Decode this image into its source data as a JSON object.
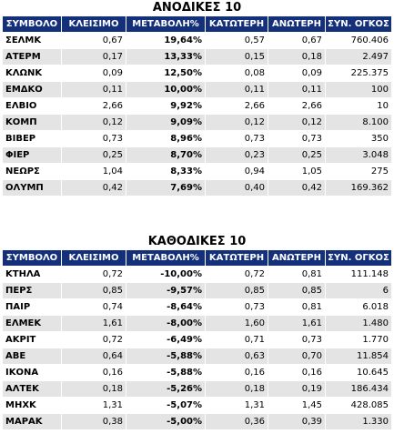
{
  "gainers": {
    "title": "ΑΝΟΔΙΚΕΣ 10",
    "headers": [
      "ΣΥΜΒΟΛΟ",
      "ΚΛΕΙΣΙΜΟ",
      "ΜΕΤΑΒΟΛΗ%",
      "ΚΑΤΩΤΕΡΗ",
      "ΑΝΩΤΕΡΗ",
      "ΣΥΝ. ΟΓΚΟΣ"
    ],
    "rows": [
      {
        "symbol": "ΣΕΛΜΚ",
        "close": "0,67",
        "change": "19,64%",
        "low": "0,57",
        "high": "0,67",
        "volume": "760.406"
      },
      {
        "symbol": "ΑΤΕΡΜ",
        "close": "0,17",
        "change": "13,33%",
        "low": "0,15",
        "high": "0,18",
        "volume": "2.497"
      },
      {
        "symbol": "ΚΛΩΝΚ",
        "close": "0,09",
        "change": "12,50%",
        "low": "0,08",
        "high": "0,09",
        "volume": "225.375"
      },
      {
        "symbol": "ΕΜΔΚΟ",
        "close": "0,11",
        "change": "10,00%",
        "low": "0,11",
        "high": "0,11",
        "volume": "100"
      },
      {
        "symbol": "ΕΛΒΙΟ",
        "close": "2,66",
        "change": "9,92%",
        "low": "2,66",
        "high": "2,66",
        "volume": "10"
      },
      {
        "symbol": "ΚΟΜΠ",
        "close": "0,12",
        "change": "9,09%",
        "low": "0,12",
        "high": "0,12",
        "volume": "8.100"
      },
      {
        "symbol": "ΒΙΒΕΡ",
        "close": "0,73",
        "change": "8,96%",
        "low": "0,73",
        "high": "0,73",
        "volume": "350"
      },
      {
        "symbol": "ΦΙΕΡ",
        "close": "0,25",
        "change": "8,70%",
        "low": "0,23",
        "high": "0,25",
        "volume": "3.048"
      },
      {
        "symbol": "ΝΕΩΡΣ",
        "close": "1,04",
        "change": "8,33%",
        "low": "0,94",
        "high": "1,05",
        "volume": "275"
      },
      {
        "symbol": "ΟΛΥΜΠ",
        "close": "0,42",
        "change": "7,69%",
        "low": "0,40",
        "high": "0,42",
        "volume": "169.362"
      }
    ]
  },
  "losers": {
    "title": "ΚΑΘΟΔΙΚΕΣ 10",
    "headers": [
      "ΣΥΜΒΟΛΟ",
      "ΚΛΕΙΣΙΜΟ",
      "ΜΕΤΑΒΟΛΗ%",
      "ΚΑΤΩΤΕΡΗ",
      "ΑΝΩΤΕΡΗ",
      "ΣΥΝ. ΟΓΚΟΣ"
    ],
    "rows": [
      {
        "symbol": "ΚΤΗΛΑ",
        "close": "0,72",
        "change": "-10,00%",
        "low": "0,72",
        "high": "0,81",
        "volume": "111.148"
      },
      {
        "symbol": "ΠΕΡΣ",
        "close": "0,85",
        "change": "-9,57%",
        "low": "0,85",
        "high": "0,85",
        "volume": "6"
      },
      {
        "symbol": "ΠΑΙΡ",
        "close": "0,74",
        "change": "-8,64%",
        "low": "0,73",
        "high": "0,81",
        "volume": "6.018"
      },
      {
        "symbol": "ΕΛΜΕΚ",
        "close": "1,61",
        "change": "-8,00%",
        "low": "1,60",
        "high": "1,61",
        "volume": "1.480"
      },
      {
        "symbol": "ΑΚΡΙΤ",
        "close": "0,72",
        "change": "-6,49%",
        "low": "0,71",
        "high": "0,73",
        "volume": "1.770"
      },
      {
        "symbol": "ΑΒΕ",
        "close": "0,64",
        "change": "-5,88%",
        "low": "0,63",
        "high": "0,70",
        "volume": "11.854"
      },
      {
        "symbol": "ΙΚΟΝΑ",
        "close": "0,16",
        "change": "-5,88%",
        "low": "0,16",
        "high": "0,16",
        "volume": "10.645"
      },
      {
        "symbol": "ΑΛΤΕΚ",
        "close": "0,18",
        "change": "-5,26%",
        "low": "0,18",
        "high": "0,19",
        "volume": "186.434"
      },
      {
        "symbol": "ΜΗΧΚ",
        "close": "1,31",
        "change": "-5,07%",
        "low": "1,31",
        "high": "1,45",
        "volume": "428.085"
      },
      {
        "symbol": "ΜΑΡΑΚ",
        "close": "0,38",
        "change": "-5,00%",
        "low": "0,36",
        "high": "0,39",
        "volume": "1.330"
      }
    ]
  }
}
